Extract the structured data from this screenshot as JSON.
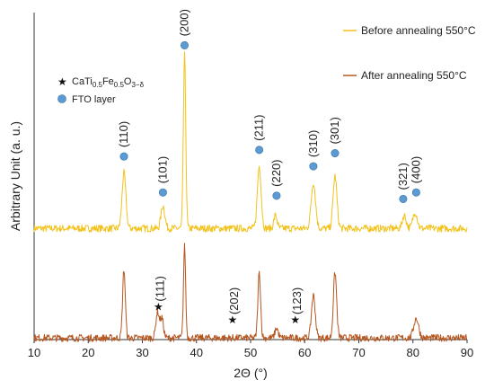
{
  "chart_data": {
    "type": "line",
    "xlabel": "2Θ (°)",
    "ylabel": "Arbitrary Unit (a. u.)",
    "xlim": [
      10,
      90
    ],
    "xticks": [
      10,
      20,
      30,
      40,
      50,
      60,
      70,
      80,
      90
    ],
    "grid": false,
    "legend_placement": "top-right",
    "series": [
      {
        "name": "Before annealing 550°C",
        "color": "#f2c21b",
        "baseline": 0.34,
        "peaks": [
          {
            "x": 26.6,
            "h": 0.17,
            "w": 0.35
          },
          {
            "x": 33.8,
            "h": 0.07,
            "w": 0.35
          },
          {
            "x": 37.8,
            "h": 0.53,
            "w": 0.22
          },
          {
            "x": 51.6,
            "h": 0.19,
            "w": 0.35
          },
          {
            "x": 54.6,
            "h": 0.04,
            "w": 0.3
          },
          {
            "x": 61.6,
            "h": 0.14,
            "w": 0.4
          },
          {
            "x": 65.6,
            "h": 0.16,
            "w": 0.35
          },
          {
            "x": 78.4,
            "h": 0.04,
            "w": 0.35
          },
          {
            "x": 80.4,
            "h": 0.05,
            "w": 0.4
          }
        ]
      },
      {
        "name": "After annealing 550°C",
        "color": "#b5561f",
        "baseline": 0.005,
        "peaks": [
          {
            "x": 26.6,
            "h": 0.21,
            "w": 0.25
          },
          {
            "x": 32.8,
            "h": 0.08,
            "w": 0.3
          },
          {
            "x": 33.6,
            "h": 0.06,
            "w": 0.3
          },
          {
            "x": 37.8,
            "h": 0.28,
            "w": 0.2
          },
          {
            "x": 51.6,
            "h": 0.2,
            "w": 0.25
          },
          {
            "x": 54.8,
            "h": 0.03,
            "w": 0.3
          },
          {
            "x": 61.6,
            "h": 0.13,
            "w": 0.35
          },
          {
            "x": 65.6,
            "h": 0.2,
            "w": 0.3
          },
          {
            "x": 80.6,
            "h": 0.06,
            "w": 0.45
          }
        ]
      }
    ],
    "fto_peaks": [
      {
        "label": "(110)",
        "x": 26.6,
        "y": 0.56
      },
      {
        "label": "(101)",
        "x": 33.8,
        "y": 0.45
      },
      {
        "label": "(200)",
        "x": 37.8,
        "y": 0.9
      },
      {
        "label": "(211)",
        "x": 51.6,
        "y": 0.58
      },
      {
        "label": "(220)",
        "x": 54.8,
        "y": 0.44
      },
      {
        "label": "(310)",
        "x": 61.6,
        "y": 0.53
      },
      {
        "label": "(301)",
        "x": 65.6,
        "y": 0.57
      },
      {
        "label": "(321)",
        "x": 78.2,
        "y": 0.43
      },
      {
        "label": "(400)",
        "x": 80.6,
        "y": 0.45
      }
    ],
    "phase_peaks": [
      {
        "label": "(111)",
        "x": 33.3,
        "y": 0.1
      },
      {
        "label": "(202)",
        "x": 47.0,
        "y": 0.06
      },
      {
        "label": "(123)",
        "x": 58.6,
        "y": 0.06
      }
    ],
    "legends": {
      "phase_prefix": "CaTi",
      "phase_sub1": "0.5",
      "phase_mid": "Fe",
      "phase_sub2": "0.5",
      "phase_end": "O",
      "phase_sub3": "3−δ",
      "fto": "FTO layer",
      "marker_color": "#5b9bd5",
      "star": "★"
    }
  }
}
